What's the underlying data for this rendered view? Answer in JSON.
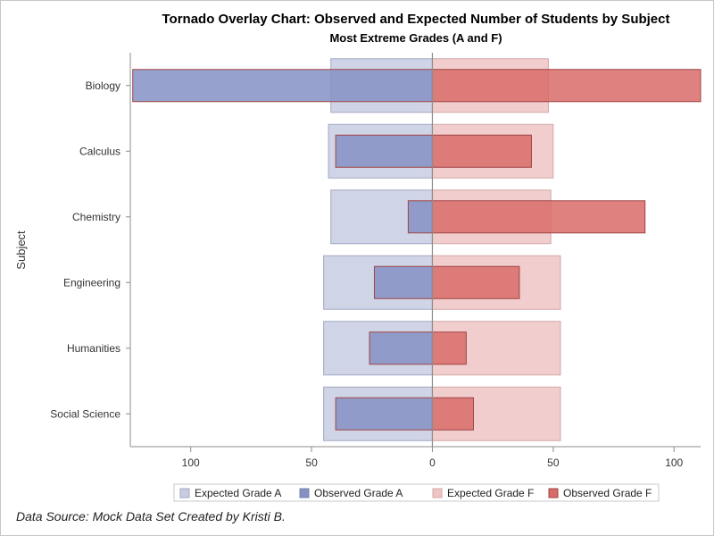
{
  "chart_data": {
    "type": "bar",
    "orientation": "horizontal",
    "style": "tornado-overlay",
    "title": "Tornado Overlay Chart: Observed and Expected Number of Students by Subject",
    "subtitle": "Most Extreme Grades (A and F)",
    "ylabel": "Subject",
    "xlabel": "",
    "xlim": [
      -125,
      111
    ],
    "x_ticks": [
      -100,
      -50,
      0,
      50,
      100
    ],
    "x_tick_labels": [
      "100",
      "50",
      "0",
      "50",
      "100"
    ],
    "categories": [
      "Biology",
      "Calculus",
      "Chemistry",
      "Engineering",
      "Humanities",
      "Social Science"
    ],
    "series": [
      {
        "name": "Expected Grade A",
        "side": "left",
        "color": "#c7cce3",
        "values": [
          42,
          43,
          42,
          45,
          45,
          45
        ]
      },
      {
        "name": "Observed Grade A",
        "side": "left",
        "color": "#8591c4",
        "values": [
          124,
          40,
          10,
          24,
          26,
          40
        ]
      },
      {
        "name": "Expected Grade F",
        "side": "right",
        "color": "#efc4c4",
        "values": [
          48,
          50,
          49,
          53,
          53,
          53
        ]
      },
      {
        "name": "Observed Grade F",
        "side": "right",
        "color": "#d96c69",
        "values": [
          111,
          41,
          88,
          36,
          14,
          17
        ]
      }
    ],
    "legend_position": "bottom",
    "grid": false
  },
  "footnote": "Data Source: Mock Data Set Created by Kristi B."
}
